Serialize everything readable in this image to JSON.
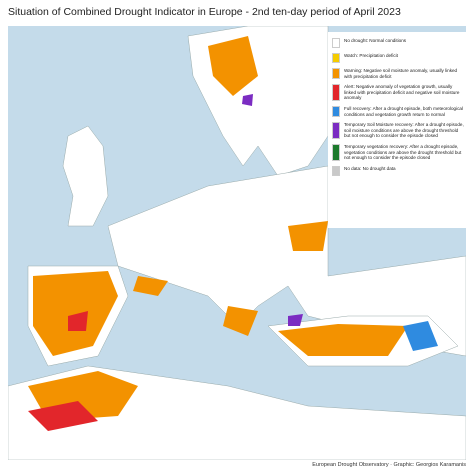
{
  "title": "Situation of Combined Drought Indicator in Europe - 2nd ten-day period of April 2023",
  "legend": [
    {
      "label": "No drought: Normal conditions",
      "color": "#ffffff"
    },
    {
      "label": "Watch: Precipitation deficit",
      "color": "#f5cc00"
    },
    {
      "label": "Warning: Negative soil moisture anomaly, usually linked with precipitation deficit",
      "color": "#f39200"
    },
    {
      "label": "Alert: Negative anomaly of vegetation growth, usually linked with precipitation deficit and negative soil moisture anomaly",
      "color": "#e2262b"
    },
    {
      "label": "Full recovery: After a drought episode, both meteorological conditions and vegetation growth return to normal",
      "color": "#2f8be0"
    },
    {
      "label": "Temporary Soil Moisture recovery: After a drought episode, soil moisture conditions are above the drought threshold but not enough to consider the episode closed",
      "color": "#7b2cc2"
    },
    {
      "label": "Temporary vegetation recovery: After a drought episode, vegetation conditions are above the drought threshold but not enough to consider the episode closed",
      "color": "#1c7a2c"
    },
    {
      "label": "No data: No drought data",
      "color": "#c9c9c9"
    }
  ],
  "source": "European Drought Observatory · Graphic: Georgios Karamanis"
}
